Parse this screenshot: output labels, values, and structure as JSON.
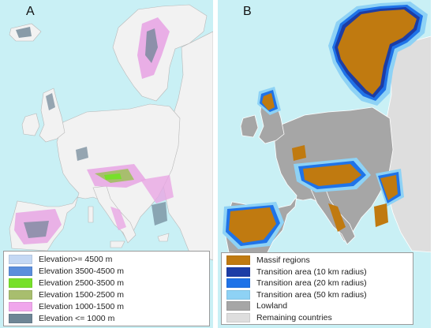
{
  "panel_a": {
    "letter": "A",
    "legend": [
      {
        "label": "Elevation>= 4500 m",
        "color": "#c4d8f4"
      },
      {
        "label": "Elevation 3500-4500 m",
        "color": "#5b8edc"
      },
      {
        "label": "Elevation 2500-3500 m",
        "color": "#77e02a"
      },
      {
        "label": "Elevation 1500-2500 m",
        "color": "#a8be6e"
      },
      {
        "label": "Elevation 1000-1500 m",
        "color": "#f0a6ec"
      },
      {
        "label": "Elevation <= 1000 m",
        "color": "#6d8595"
      }
    ]
  },
  "panel_b": {
    "letter": "B",
    "legend": [
      {
        "label": "Massif regions",
        "color": "#c07a10"
      },
      {
        "label": "Transition area (10 km radius)",
        "color": "#1c3da6"
      },
      {
        "label": "Transition area (20 km radius)",
        "color": "#1f73e8"
      },
      {
        "label": "Transition area (50 km radius)",
        "color": "#8ed2f5"
      },
      {
        "label": "Lowland",
        "color": "#a6a6a6"
      },
      {
        "label": "Remaining countries",
        "color": "#dedede"
      }
    ]
  },
  "colors": {
    "sea": "#c9f0f5",
    "land_a": "#f2f2f2",
    "border_line": "#b8b8b8"
  }
}
